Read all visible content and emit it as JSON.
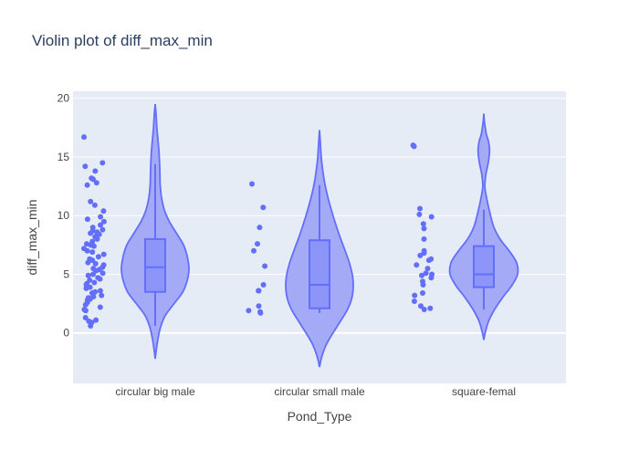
{
  "chart_data": {
    "type": "violin",
    "title": "Violin plot of diff_max_min",
    "xlabel": "Pond_Type",
    "ylabel": "diff_max_min",
    "ylim": [
      -4.3,
      20.6
    ],
    "yticks": [
      0,
      5,
      10,
      15,
      20
    ],
    "grid": true,
    "colors": {
      "plot_bg": "#e5ecf6",
      "grid": "#ffffff",
      "violin_fill": "#a1a7f6",
      "violin_line": "#636efa",
      "box_fill": "#8d95f8",
      "point": "#636efa",
      "text": "#444444",
      "title": "#2a3f5f"
    },
    "categories": [
      "circular big male",
      "circular small male",
      "square-femal"
    ],
    "violins": [
      {
        "category": "circular big male",
        "kde_y": [
          -2.2,
          -1.5,
          -0.5,
          0.5,
          1.5,
          2.5,
          3.5,
          4.5,
          5.5,
          6.5,
          7.5,
          8.5,
          9.5,
          10.5,
          11.5,
          12.5,
          13.5,
          14.5,
          15.5,
          16.5,
          17.5,
          18.5,
          19.5
        ],
        "kde_half_width": [
          0.0,
          0.03,
          0.08,
          0.16,
          0.3,
          0.56,
          0.82,
          0.95,
          1.0,
          0.95,
          0.84,
          0.63,
          0.42,
          0.27,
          0.19,
          0.15,
          0.14,
          0.13,
          0.11,
          0.08,
          0.05,
          0.03,
          0.0
        ],
        "box": {
          "min": 0.6,
          "q1": 3.5,
          "median": 5.6,
          "q3": 8.0,
          "max": 14.4
        },
        "points": [
          16.7,
          14.5,
          14.2,
          13.8,
          13.2,
          13.1,
          12.8,
          12.6,
          11.2,
          10.9,
          10.4,
          9.9,
          9.7,
          9.5,
          9.2,
          9.0,
          8.8,
          8.7,
          8.6,
          8.5,
          8.4,
          8.2,
          8.0,
          7.8,
          7.6,
          7.5,
          7.4,
          7.2,
          7.0,
          6.9,
          6.7,
          6.5,
          6.3,
          6.2,
          6.0,
          5.9,
          5.8,
          5.6,
          5.5,
          5.4,
          5.3,
          5.1,
          5.0,
          4.9,
          4.7,
          4.6,
          4.5,
          4.3,
          4.2,
          4.1,
          3.9,
          3.8,
          3.6,
          3.5,
          3.4,
          3.2,
          3.1,
          3.0,
          2.9,
          2.8,
          2.6,
          2.4,
          2.2,
          2.0,
          1.9,
          1.3,
          1.1,
          1.0,
          0.9,
          0.6
        ]
      },
      {
        "category": "circular small male",
        "kde_y": [
          -2.9,
          -2.0,
          -1.0,
          0.0,
          1.0,
          2.0,
          3.0,
          4.0,
          5.0,
          6.0,
          7.0,
          8.0,
          9.0,
          10.0,
          11.0,
          12.0,
          13.0,
          14.0,
          15.0,
          16.0,
          17.3
        ],
        "kde_half_width": [
          0.0,
          0.07,
          0.2,
          0.4,
          0.62,
          0.83,
          0.96,
          1.0,
          0.97,
          0.88,
          0.76,
          0.63,
          0.51,
          0.4,
          0.3,
          0.21,
          0.14,
          0.09,
          0.05,
          0.03,
          0.0
        ],
        "box": {
          "min": 1.7,
          "q1": 2.1,
          "median": 4.1,
          "q3": 7.9,
          "max": 12.6
        },
        "points": [
          12.7,
          10.7,
          9.0,
          7.6,
          7.0,
          5.7,
          4.1,
          3.6,
          3.6,
          2.3,
          1.9,
          1.8,
          1.7
        ]
      },
      {
        "category": "square-femal",
        "kde_y": [
          -0.6,
          0.0,
          1.0,
          2.0,
          3.0,
          4.0,
          5.0,
          6.0,
          7.0,
          8.0,
          9.0,
          10.0,
          11.0,
          12.0,
          12.6,
          13.5,
          14.5,
          15.5,
          16.3,
          17.0,
          18.0,
          18.7
        ],
        "kde_half_width": [
          0.0,
          0.04,
          0.14,
          0.32,
          0.55,
          0.82,
          1.0,
          0.97,
          0.75,
          0.48,
          0.3,
          0.2,
          0.12,
          0.05,
          0.03,
          0.06,
          0.13,
          0.17,
          0.14,
          0.07,
          0.02,
          0.0
        ],
        "box": {
          "min": 2.0,
          "q1": 3.9,
          "median": 5.0,
          "q3": 7.4,
          "max": 10.5
        },
        "points": [
          16.0,
          15.9,
          10.6,
          10.1,
          9.9,
          9.3,
          8.9,
          8.0,
          7.0,
          6.8,
          6.6,
          6.3,
          6.2,
          5.8,
          5.5,
          5.1,
          5.0,
          4.9,
          4.7,
          4.4,
          4.1,
          3.4,
          3.2,
          2.7,
          2.3,
          2.1,
          2.0
        ]
      }
    ]
  }
}
